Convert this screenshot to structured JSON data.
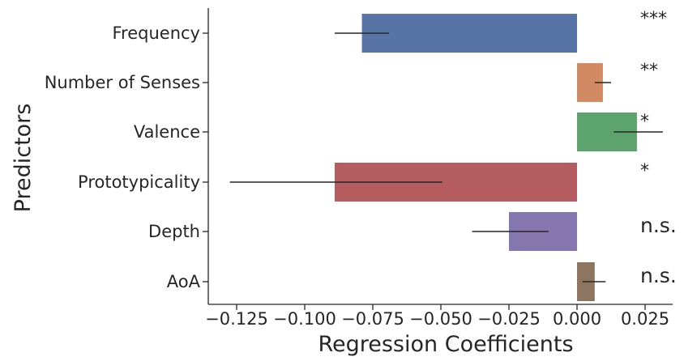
{
  "chart_data": {
    "type": "bar",
    "orientation": "horizontal",
    "xlabel": "Regression Coefficients",
    "ylabel": "Predictors",
    "xlim": [
      -0.135,
      0.038
    ],
    "xticks": [
      -0.125,
      -0.1,
      -0.075,
      -0.05,
      -0.025,
      0.0,
      0.025
    ],
    "xtick_labels": [
      "−0.125",
      "−0.100",
      "−0.075",
      "−0.050",
      "−0.025",
      "0.000",
      "0.025"
    ],
    "grid": false,
    "categories": [
      "Frequency",
      "Number of Senses",
      "Valence",
      "Prototypicality",
      "Depth",
      "AoA"
    ],
    "values": [
      -0.079,
      0.0095,
      0.022,
      -0.089,
      -0.025,
      0.0065
    ],
    "error_bars": [
      [
        -0.089,
        -0.069
      ],
      [
        0.0065,
        0.0125
      ],
      [
        0.0135,
        0.0315
      ],
      [
        -0.1275,
        -0.0495
      ],
      [
        -0.0385,
        -0.0105
      ],
      [
        0.002,
        0.0105
      ]
    ],
    "significance": [
      "***",
      "**",
      "*",
      "*",
      "n.s.",
      "n.s."
    ],
    "colors": [
      "#5874a6",
      "#d18a62",
      "#5da36d",
      "#b55d60",
      "#8576b0",
      "#8e7560"
    ]
  }
}
